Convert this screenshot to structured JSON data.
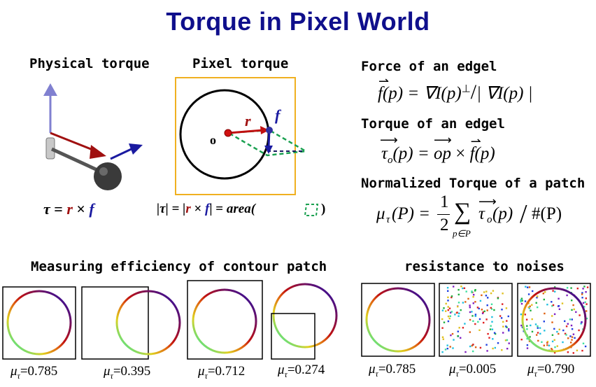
{
  "title": "Torque in Pixel World",
  "physical": {
    "heading": "Physical torque",
    "equation": {
      "tau": "τ",
      "eq": "=",
      "r": "r",
      "times": "×",
      "f": "f"
    }
  },
  "pixel": {
    "heading": "Pixel torque",
    "label_o": "o",
    "label_r": "r",
    "label_f": "f",
    "equation": {
      "lhs": "|τ| = |",
      "r": "r",
      "times": " × ",
      "f": "f",
      "mid": "| = ",
      "area": "area(",
      "close": ")"
    }
  },
  "definitions": {
    "force_heading": "Force of an edgel",
    "torque_heading": "Torque of an edgel",
    "normalized_heading": "Normalized Torque of a patch",
    "force_formula": {
      "f": "f",
      "arg": "(p) = ∇I(p)",
      "perp": "⊥",
      "div": "/",
      "rest": "| ∇I(p) |"
    },
    "torque_formula": {
      "tau": "τ",
      "sub": "o",
      "arg": "(p) = ",
      "op": "op",
      "times": " × ",
      "f": "f",
      "farg": "(p)"
    },
    "normalized_formula": {
      "mu": "μ",
      "sub": "τ",
      "arg": "(P) = ",
      "num": "1",
      "den": "2",
      "sum": "∑",
      "sumsub": "p∈P",
      "tau": "τ",
      "tsub": "o",
      "targ": "(p)",
      "div": "/",
      "count": "#(P)"
    }
  },
  "efficiency": {
    "heading": "Measuring efficiency of contour patch",
    "panels": [
      {
        "label": "μ",
        "sub": "τ",
        "value": "=0.785"
      },
      {
        "label": "μ",
        "sub": "τ",
        "value": "=0.395"
      },
      {
        "label": "μ",
        "sub": "τ",
        "value": "=0.712"
      },
      {
        "label": "μ",
        "sub": "τ",
        "value": "=0.274"
      }
    ]
  },
  "noise": {
    "heading": "resistance to noises",
    "panels": [
      {
        "label": "μ",
        "sub": "τ",
        "value": "=0.785"
      },
      {
        "label": "μ",
        "sub": "τ",
        "value": "=0.005"
      },
      {
        "label": "μ",
        "sub": "τ",
        "value": "=0.790"
      }
    ]
  },
  "colors": {
    "title": "#0f0f8c",
    "red_vector": "#a01010",
    "blue_vector": "#1a1aa0",
    "green_dash": "#1aa050",
    "orange_frame": "#f0b020",
    "violet_axis": "#8080d0"
  }
}
